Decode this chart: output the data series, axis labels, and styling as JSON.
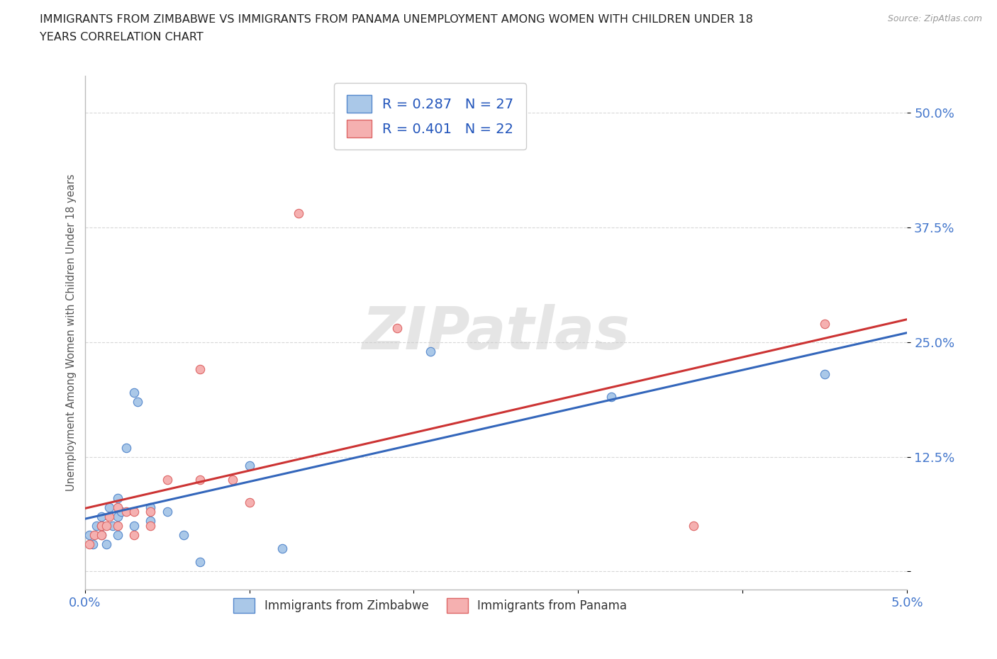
{
  "title_line1": "IMMIGRANTS FROM ZIMBABWE VS IMMIGRANTS FROM PANAMA UNEMPLOYMENT AMONG WOMEN WITH CHILDREN UNDER 18",
  "title_line2": "YEARS CORRELATION CHART",
  "source": "Source: ZipAtlas.com",
  "ylabel": "Unemployment Among Women with Children Under 18 years",
  "xlim": [
    0.0,
    0.05
  ],
  "ylim": [
    -0.02,
    0.54
  ],
  "yticks": [
    0.0,
    0.125,
    0.25,
    0.375,
    0.5
  ],
  "ytick_labels": [
    "",
    "12.5%",
    "25.0%",
    "37.5%",
    "50.0%"
  ],
  "xticks": [
    0.0,
    0.01,
    0.02,
    0.03,
    0.04,
    0.05
  ],
  "xtick_labels": [
    "0.0%",
    "",
    "",
    "",
    "",
    "5.0%"
  ],
  "zimbabwe_color": "#aac8e8",
  "panama_color": "#f5b0b0",
  "zimbabwe_edge": "#5588cc",
  "panama_edge": "#dd6666",
  "trend_zimbabwe_color": "#3366bb",
  "trend_panama_color": "#cc3333",
  "R_zimbabwe": 0.287,
  "N_zimbabwe": 27,
  "R_panama": 0.401,
  "N_panama": 22,
  "legend_label_zimbabwe": "Immigrants from Zimbabwe",
  "legend_label_panama": "Immigrants from Panama",
  "watermark": "ZIPatlas",
  "zimbabwe_x": [
    0.0003,
    0.0005,
    0.0007,
    0.001,
    0.001,
    0.001,
    0.0013,
    0.0015,
    0.0017,
    0.002,
    0.002,
    0.002,
    0.0022,
    0.0025,
    0.003,
    0.003,
    0.0032,
    0.004,
    0.004,
    0.005,
    0.006,
    0.007,
    0.01,
    0.012,
    0.021,
    0.032,
    0.045
  ],
  "zimbabwe_y": [
    0.04,
    0.03,
    0.05,
    0.04,
    0.05,
    0.06,
    0.03,
    0.07,
    0.05,
    0.06,
    0.04,
    0.08,
    0.065,
    0.135,
    0.05,
    0.195,
    0.185,
    0.055,
    0.07,
    0.065,
    0.04,
    0.01,
    0.115,
    0.025,
    0.24,
    0.19,
    0.215
  ],
  "panama_x": [
    0.0003,
    0.0006,
    0.001,
    0.001,
    0.0013,
    0.0015,
    0.002,
    0.002,
    0.0025,
    0.003,
    0.003,
    0.004,
    0.004,
    0.005,
    0.007,
    0.007,
    0.009,
    0.01,
    0.013,
    0.019,
    0.037,
    0.045
  ],
  "panama_y": [
    0.03,
    0.04,
    0.04,
    0.05,
    0.05,
    0.06,
    0.05,
    0.07,
    0.065,
    0.04,
    0.065,
    0.05,
    0.065,
    0.1,
    0.1,
    0.22,
    0.1,
    0.075,
    0.39,
    0.265,
    0.05,
    0.27
  ],
  "background_color": "#ffffff",
  "grid_color": "#d8d8d8",
  "title_color": "#222222",
  "tick_label_color": "#4477cc",
  "marker_size": 80,
  "legend_text_color": "#2255bb"
}
